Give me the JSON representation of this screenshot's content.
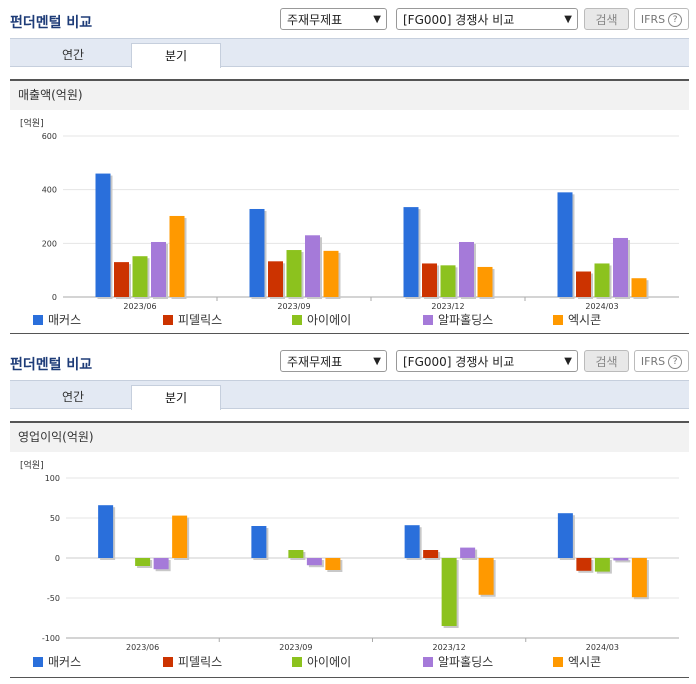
{
  "panels": [
    {
      "title": "펀더멘털 비교",
      "select1": "주재무제표",
      "select2": "[FG000] 경쟁사 비교",
      "search_label": "검색",
      "ifrs_label": "IFRS",
      "ifrs_help": "?",
      "tabs": [
        {
          "label": "연간",
          "active": false
        },
        {
          "label": "분기",
          "active": true
        }
      ],
      "subtitle": "매출액(억원)"
    },
    {
      "title": "펀더멘털 비교",
      "select1": "주재무제표",
      "select2": "[FG000] 경쟁사 비교",
      "search_label": "검색",
      "ifrs_label": "IFRS",
      "ifrs_help": "?",
      "tabs": [
        {
          "label": "연간",
          "active": false
        },
        {
          "label": "분기",
          "active": true
        }
      ],
      "subtitle": "영업이익(억원)"
    }
  ],
  "chart_data": [
    {
      "type": "bar",
      "unit_label": "[억원]",
      "categories": [
        "2023/06",
        "2023/09",
        "2023/12",
        "2024/03"
      ],
      "ylim": [
        0,
        600
      ],
      "yticks": [
        0,
        200,
        400,
        600
      ],
      "legend_position": "bottom",
      "series": [
        {
          "name": "매커스",
          "color": "#2a6fdb",
          "values": [
            460,
            328,
            335,
            390
          ]
        },
        {
          "name": "피델릭스",
          "color": "#cc3300",
          "values": [
            130,
            133,
            125,
            95
          ]
        },
        {
          "name": "아이에이",
          "color": "#8cc21e",
          "values": [
            152,
            175,
            118,
            125
          ]
        },
        {
          "name": "알파홀딩스",
          "color": "#a57ad9",
          "values": [
            205,
            230,
            205,
            220
          ]
        },
        {
          "name": "엑시콘",
          "color": "#ff9900",
          "values": [
            302,
            172,
            112,
            70
          ]
        }
      ]
    },
    {
      "type": "bar",
      "unit_label": "[억원]",
      "categories": [
        "2023/06",
        "2023/09",
        "2023/12",
        "2024/03"
      ],
      "ylim": [
        -100,
        100
      ],
      "yticks": [
        -100,
        -50,
        0,
        50,
        100
      ],
      "legend_position": "bottom",
      "series": [
        {
          "name": "매커스",
          "color": "#2a6fdb",
          "values": [
            66,
            40,
            41,
            56
          ]
        },
        {
          "name": "피델릭스",
          "color": "#cc3300",
          "values": [
            0,
            0,
            10,
            -16
          ]
        },
        {
          "name": "아이에이",
          "color": "#8cc21e",
          "values": [
            -10,
            10,
            -85,
            -17
          ]
        },
        {
          "name": "알파홀딩스",
          "color": "#a57ad9",
          "values": [
            -14,
            -9,
            13,
            -3
          ]
        },
        {
          "name": "엑시콘",
          "color": "#ff9900",
          "values": [
            53,
            -15,
            -46,
            -49
          ]
        }
      ]
    }
  ]
}
